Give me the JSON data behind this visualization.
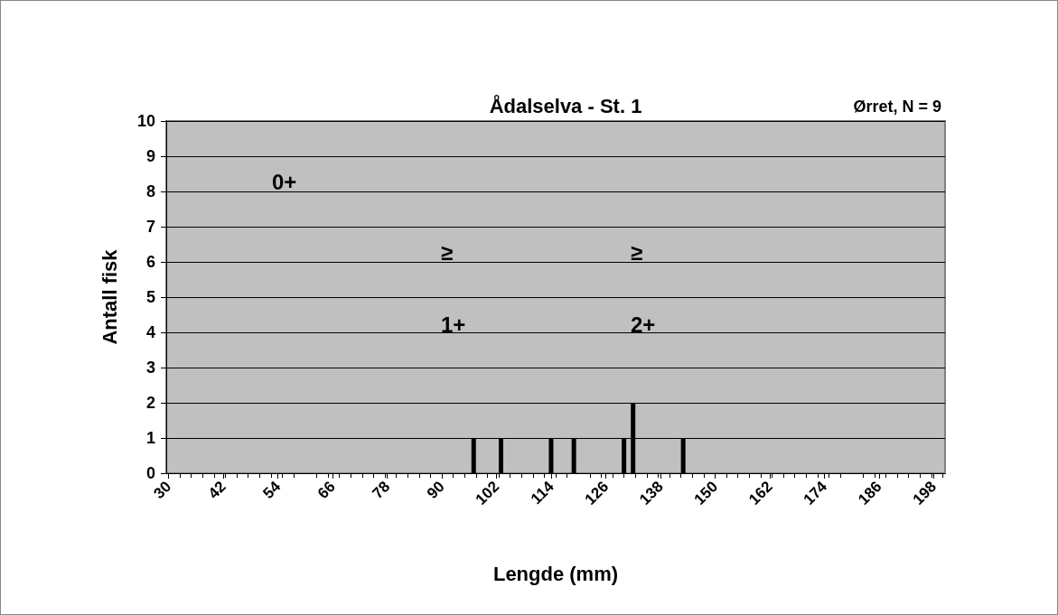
{
  "chart_data": {
    "type": "bar",
    "title": "Ådalselva - St. 1",
    "xlabel": "Lengde (mm)",
    "ylabel": "Antall fisk",
    "x": [
      97,
      103,
      114,
      119,
      130,
      132,
      143
    ],
    "values": [
      1,
      1,
      1,
      1,
      1,
      2,
      1
    ],
    "color": "#000000",
    "xlim": [
      29.5,
      200.5
    ],
    "xticks": [
      30,
      42,
      54,
      66,
      78,
      90,
      102,
      114,
      126,
      138,
      150,
      162,
      174,
      186,
      198
    ],
    "ylim": [
      0,
      10
    ],
    "yticks": [
      0,
      1,
      2,
      3,
      4,
      5,
      6,
      7,
      8,
      9,
      10
    ],
    "grid": "y",
    "annotations": [
      "0+",
      "≥ 1+",
      "≥ 2+",
      "Ørret, N = 9"
    ]
  }
}
